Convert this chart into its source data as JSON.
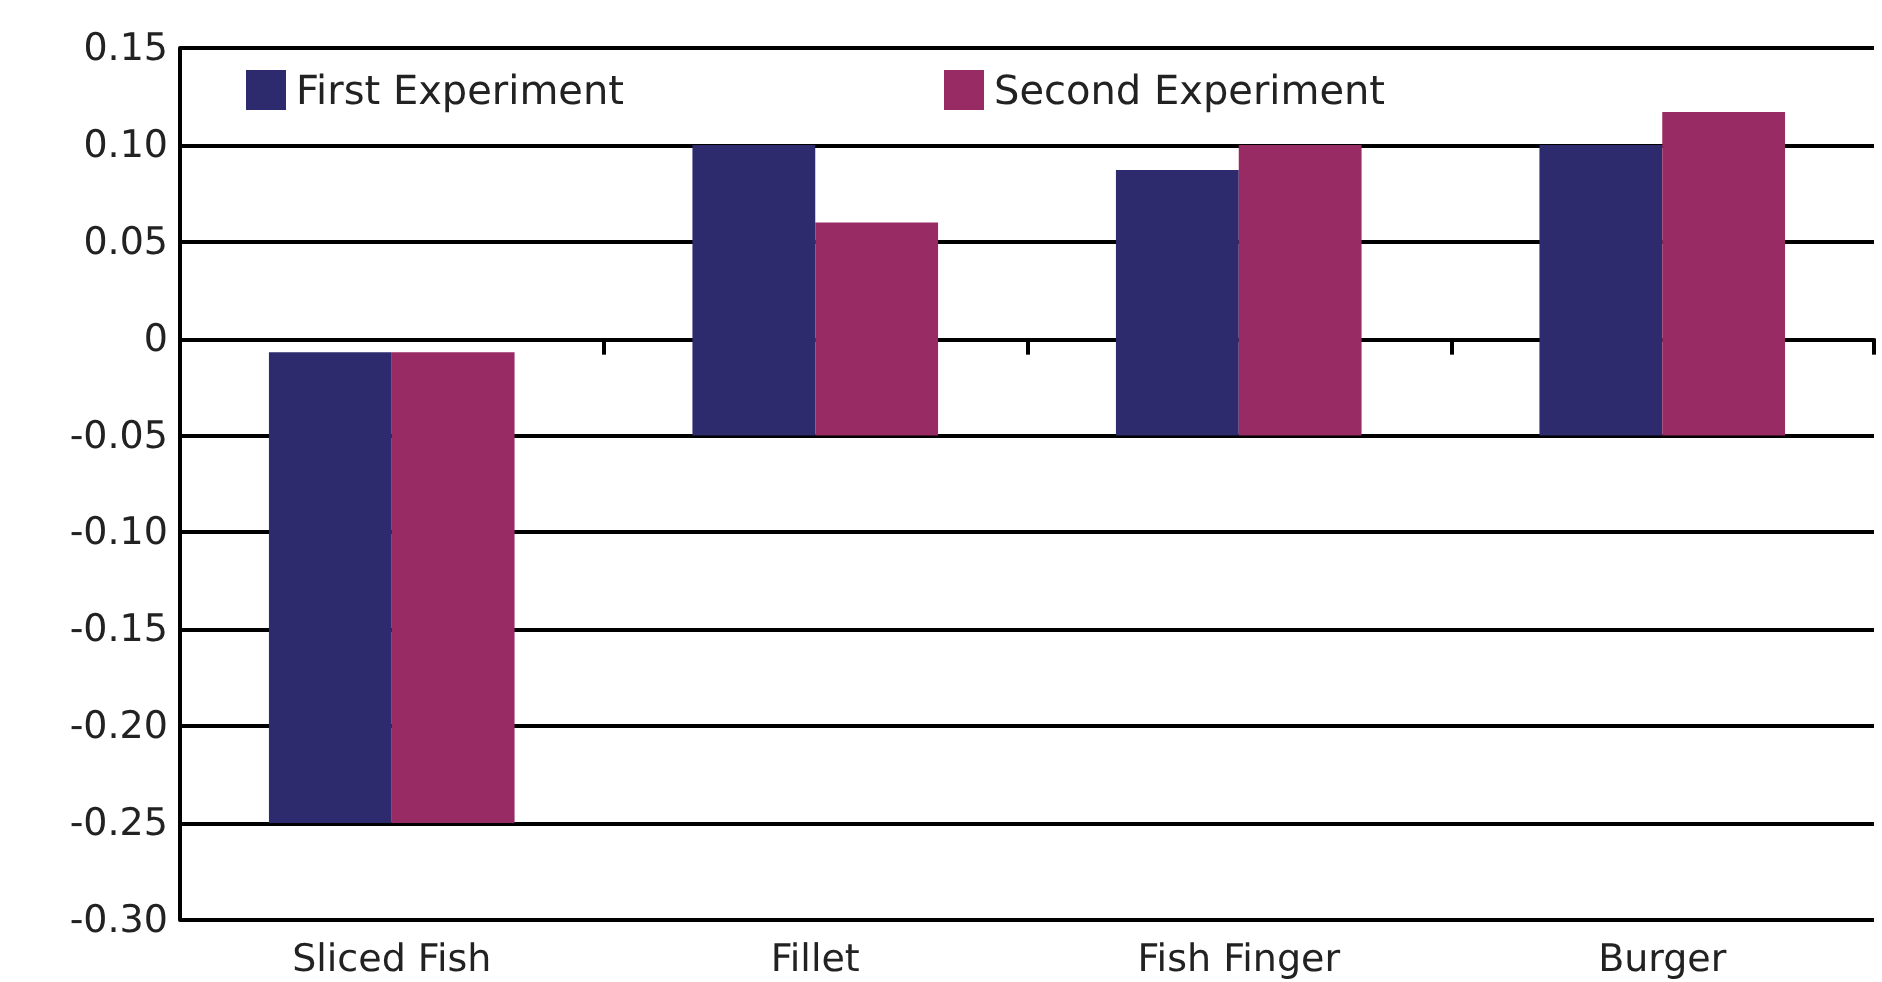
{
  "chart_data": {
    "type": "bar",
    "categories": [
      "Sliced Fish",
      "Fillet",
      "Fish Finger",
      "Burger"
    ],
    "series": [
      {
        "name": "First Experiment",
        "color": "#2d2a6e",
        "base": [
          -0.25,
          -0.05,
          -0.05,
          -0.05
        ],
        "values": [
          0.243,
          0.15,
          0.137,
          0.15
        ]
      },
      {
        "name": "Second Experiment",
        "color": "#982b63",
        "base": [
          -0.25,
          -0.05,
          -0.05,
          -0.05
        ],
        "values": [
          0.243,
          0.11,
          0.15,
          0.167
        ]
      }
    ],
    "ylim": [
      -0.3,
      0.15
    ],
    "yticks": [
      {
        "value": -0.3,
        "label": "-0.30"
      },
      {
        "value": -0.25,
        "label": "-0.25"
      },
      {
        "value": -0.2,
        "label": "-0.20"
      },
      {
        "value": -0.15,
        "label": "-0.15"
      },
      {
        "value": -0.1,
        "label": "-0.10"
      },
      {
        "value": -0.05,
        "label": "-0.05"
      },
      {
        "value": 0,
        "label": "0"
      },
      {
        "value": 0.05,
        "label": "0.05"
      },
      {
        "value": 0.1,
        "label": "0.10"
      },
      {
        "value": 0.15,
        "label": "0.15"
      }
    ],
    "grid": "y",
    "legend": "top"
  }
}
